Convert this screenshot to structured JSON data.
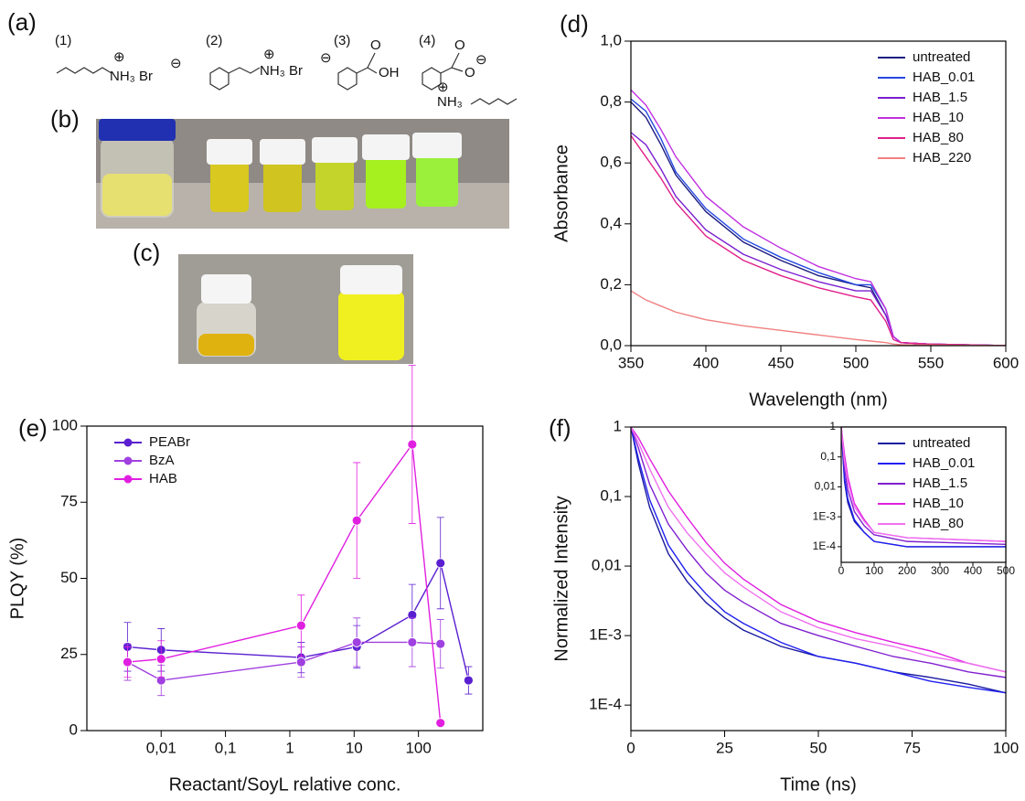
{
  "panels": {
    "a": "(a)",
    "b": "(b)",
    "c": "(c)"
  },
  "structures": [
    {
      "label": "(1)",
      "texts": [
        "⊕",
        "NH₃ Br",
        "⊖"
      ]
    },
    {
      "label": "(2)",
      "texts": [
        "⊕",
        "NH₃ Br",
        "⊖"
      ]
    },
    {
      "label": "(3)",
      "texts": [
        "O",
        "OH"
      ]
    },
    {
      "label": "(4)",
      "texts": [
        "O",
        "O",
        "⊖",
        "⊕",
        "NH₃"
      ]
    }
  ],
  "chart_data": [
    {
      "type": "line",
      "panel_label": "(d)",
      "xlabel": "Wavelength (nm)",
      "ylabel": "Absorbance",
      "legend": "upper right",
      "x": [
        350,
        360,
        370,
        380,
        400,
        425,
        450,
        475,
        500,
        510,
        520,
        525,
        530,
        550,
        600
      ],
      "xlim": [
        350,
        600
      ],
      "xticks": [
        350,
        400,
        450,
        500,
        550,
        600
      ],
      "ylim": [
        0,
        1
      ],
      "yticks": [
        {
          "value": 0,
          "label": "0,0"
        },
        {
          "value": 0.2,
          "label": "0,2"
        },
        {
          "value": 0.4,
          "label": "0,4"
        },
        {
          "value": 0.6,
          "label": "0,6"
        },
        {
          "value": 0.8,
          "label": "0,8"
        },
        {
          "value": 1,
          "label": "1,0"
        }
      ],
      "series": [
        {
          "name": "untreated",
          "color": "#1a1a80",
          "values": [
            0.8,
            0.75,
            0.66,
            0.56,
            0.44,
            0.34,
            0.28,
            0.23,
            0.2,
            0.19,
            0.1,
            0.03,
            0.01,
            0.005,
            0
          ]
        },
        {
          "name": "HAB_0.01",
          "color": "#2448e0",
          "values": [
            0.81,
            0.77,
            0.68,
            0.57,
            0.45,
            0.35,
            0.29,
            0.24,
            0.2,
            0.2,
            0.12,
            0.03,
            0.01,
            0.005,
            0
          ]
        },
        {
          "name": "HAB_1.5",
          "color": "#7a1fd0",
          "values": [
            0.7,
            0.66,
            0.58,
            0.49,
            0.38,
            0.3,
            0.25,
            0.21,
            0.18,
            0.18,
            0.1,
            0.03,
            0.01,
            0.005,
            0
          ]
        },
        {
          "name": "HAB_10",
          "color": "#c030e0",
          "values": [
            0.84,
            0.79,
            0.71,
            0.62,
            0.49,
            0.39,
            0.32,
            0.26,
            0.22,
            0.21,
            0.12,
            0.03,
            0.01,
            0.005,
            0
          ]
        },
        {
          "name": "HAB_80",
          "color": "#e0208a",
          "values": [
            0.69,
            0.62,
            0.55,
            0.47,
            0.36,
            0.28,
            0.23,
            0.19,
            0.16,
            0.15,
            0.08,
            0.02,
            0.01,
            0.005,
            0
          ]
        },
        {
          "name": "HAB_220",
          "color": "#f08080",
          "values": [
            0.18,
            0.15,
            0.13,
            0.11,
            0.085,
            0.065,
            0.05,
            0.035,
            0.02,
            0.015,
            0.01,
            0.005,
            0.003,
            0.002,
            0
          ]
        }
      ]
    },
    {
      "type": "line",
      "panel_label": "(e)",
      "xlabel": "Reactant/SoyL relative conc.",
      "ylabel": "PLQY (%)",
      "legend": "upper left",
      "markers": true,
      "xlog": true,
      "xlim": [
        0.0007,
        1000
      ],
      "xticks": [
        {
          "value": 0.01,
          "label": "0,01"
        },
        {
          "value": 0.1,
          "label": "0,1"
        },
        1,
        10,
        100
      ],
      "ylim": [
        0,
        100
      ],
      "yticks": [
        0,
        25,
        50,
        75,
        100
      ],
      "series": [
        {
          "name": "PEABr",
          "color": "#5a1fd0",
          "x": [
            0.003,
            0.01,
            1.5,
            11,
            80,
            220,
            600
          ],
          "values": [
            27.5,
            26.5,
            24,
            27.5,
            38,
            55,
            16.5
          ],
          "error": [
            8,
            7,
            5,
            7,
            10,
            15,
            4.5
          ]
        },
        {
          "name": "BzA",
          "color": "#a040e0",
          "x": [
            0.003,
            0.01,
            1.5,
            11,
            80,
            220
          ],
          "values": [
            22.5,
            16.5,
            22.5,
            29,
            29,
            28.5
          ],
          "error": [
            6,
            5,
            5,
            8,
            8,
            8
          ]
        },
        {
          "name": "HAB",
          "color": "#e020e0",
          "x": [
            0.003,
            0.01,
            1.5,
            11,
            80,
            220
          ],
          "values": [
            22.5,
            23.5,
            34.5,
            69,
            94,
            2.5
          ],
          "error": [
            5,
            6,
            10,
            19,
            26,
            1
          ]
        }
      ]
    },
    {
      "type": "line",
      "panel_label": "(f)",
      "xlabel": "Time (ns)",
      "ylabel": "Normalized Intensity",
      "legend": "upper right",
      "ylog": true,
      "x": [
        0,
        2,
        5,
        10,
        15,
        20,
        25,
        30,
        40,
        50,
        60,
        70,
        80,
        90,
        100
      ],
      "xlim": [
        0,
        100
      ],
      "xticks": [
        0,
        25,
        50,
        75,
        100
      ],
      "ylim": [
        4.3e-05,
        1
      ],
      "yticks": [
        {
          "value": 0.0001,
          "label": "1E-4"
        },
        {
          "value": 0.001,
          "label": "1E-3"
        },
        {
          "value": 0.01,
          "label": "0,01"
        },
        {
          "value": 0.1,
          "label": "0,1"
        },
        1
      ],
      "series": [
        {
          "name": "untreated",
          "color": "#1a1aa0",
          "values": [
            1,
            0.3,
            0.07,
            0.015,
            0.006,
            0.003,
            0.0018,
            0.0012,
            0.0007,
            0.0005,
            0.0004,
            0.0003,
            0.00025,
            0.0002,
            0.00015
          ]
        },
        {
          "name": "HAB_0.01",
          "color": "#2020f0",
          "values": [
            1,
            0.35,
            0.09,
            0.02,
            0.008,
            0.004,
            0.0022,
            0.0015,
            0.0008,
            0.0005,
            0.0004,
            0.0003,
            0.00022,
            0.00018,
            0.00015
          ]
        },
        {
          "name": "HAB_1.5",
          "color": "#8020d0",
          "values": [
            1,
            0.5,
            0.15,
            0.04,
            0.017,
            0.008,
            0.0045,
            0.003,
            0.0015,
            0.001,
            0.0007,
            0.0005,
            0.0004,
            0.0003,
            0.00025
          ]
        },
        {
          "name": "HAB_10",
          "color": "#e020e0",
          "values": [
            1,
            0.7,
            0.35,
            0.12,
            0.05,
            0.022,
            0.011,
            0.0065,
            0.0028,
            0.0016,
            0.0011,
            0.0008,
            0.0006,
            0.0004,
            0.0003
          ]
        },
        {
          "name": "HAB_80",
          "color": "#f070f0",
          "values": [
            1,
            0.6,
            0.25,
            0.07,
            0.03,
            0.015,
            0.008,
            0.005,
            0.0022,
            0.0013,
            0.0009,
            0.0007,
            0.0005,
            0.0004,
            0.0003
          ]
        }
      ]
    },
    {
      "type": "line",
      "inset": true,
      "ylog": true,
      "x": [
        0,
        10,
        20,
        40,
        70,
        100,
        200,
        500
      ],
      "xlim": [
        0,
        500
      ],
      "xticks": [
        0,
        100,
        200,
        300,
        400,
        500
      ],
      "ylim": [
        3e-05,
        1
      ],
      "yticks": [
        {
          "value": 0.0001,
          "label": "1E-4"
        },
        {
          "value": 0.001,
          "label": "1E-3"
        },
        {
          "value": 0.01,
          "label": "0,01"
        },
        {
          "value": 0.1,
          "label": "0,1"
        },
        1
      ],
      "series": [
        {
          "color": "#1a1aa0",
          "values": [
            1,
            0.015,
            0.003,
            0.0007,
            0.0003,
            0.00015,
            0.0001,
            0.0001
          ]
        },
        {
          "color": "#2020f0",
          "values": [
            1,
            0.02,
            0.004,
            0.0008,
            0.0003,
            0.00015,
            0.0001,
            0.0001
          ]
        },
        {
          "color": "#8020d0",
          "values": [
            1,
            0.04,
            0.008,
            0.0015,
            0.0005,
            0.00025,
            0.00015,
            0.00012
          ]
        },
        {
          "color": "#e020e0",
          "values": [
            1,
            0.12,
            0.022,
            0.0028,
            0.0008,
            0.0003,
            0.0002,
            0.00015
          ]
        },
        {
          "color": "#f070f0",
          "values": [
            1,
            0.07,
            0.015,
            0.0022,
            0.0007,
            0.0003,
            0.0002,
            0.00015
          ]
        }
      ]
    }
  ]
}
